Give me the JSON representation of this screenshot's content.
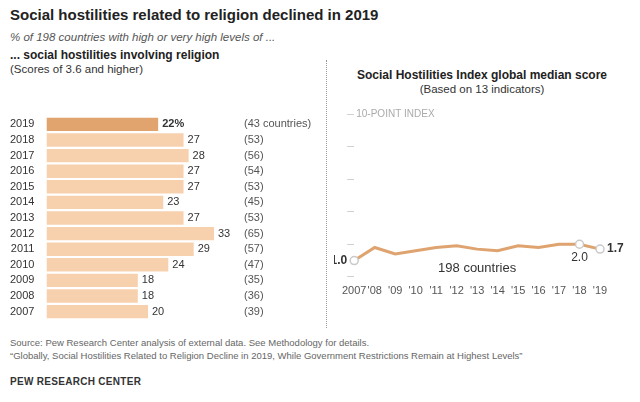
{
  "header": {
    "title": "Social hostilities related to religion declined in 2019",
    "subtitle": "% of 198 countries with high or very high levels of ..."
  },
  "chart_data": [
    {
      "type": "bar",
      "orientation": "horizontal",
      "title": "... social hostilities involving religion",
      "subtitle": "(Scores of 3.6 and higher)",
      "categories": [
        "2019",
        "2018",
        "2017",
        "2016",
        "2015",
        "2014",
        "2013",
        "2012",
        "2011",
        "2010",
        "2009",
        "2008",
        "2007"
      ],
      "values": [
        22,
        27,
        28,
        27,
        27,
        23,
        27,
        33,
        29,
        24,
        18,
        18,
        20
      ],
      "value_labels": [
        "22%",
        "27",
        "28",
        "27",
        "27",
        "23",
        "27",
        "33",
        "29",
        "24",
        "18",
        "18",
        "20"
      ],
      "data_labels": true,
      "colors": [
        "#e2a46e",
        "#f7d1ae",
        "#f7d1ae",
        "#f7d1ae",
        "#f7d1ae",
        "#f7d1ae",
        "#f7d1ae",
        "#f7d1ae",
        "#f7d1ae",
        "#f7d1ae",
        "#f7d1ae",
        "#f7d1ae",
        "#f7d1ae"
      ],
      "country_counts": {
        "values": [
          43,
          53,
          56,
          54,
          53,
          45,
          53,
          65,
          57,
          47,
          35,
          36,
          39
        ],
        "labels": [
          "(43 countries)",
          "(53)",
          "(56)",
          "(54)",
          "(53)",
          "(45)",
          "(53)",
          "(65)",
          "(57)",
          "(47)",
          "(35)",
          "(36)",
          "(39)"
        ]
      },
      "xlim": [
        0,
        33
      ],
      "tick_labels": "y",
      "grid": false
    },
    {
      "type": "line",
      "title": "Social Hostilities Index global median score",
      "subtitle": "(Based on 13 indicators)",
      "y_label": "10-POINT INDEX",
      "categories": [
        "2007",
        "'08",
        "'09",
        "'10",
        "'11",
        "'12",
        "'13",
        "'14",
        "'15",
        "'16",
        "'17",
        "'18",
        "'19"
      ],
      "values": [
        1.0,
        1.8,
        1.4,
        1.6,
        1.8,
        1.9,
        1.7,
        1.6,
        1.9,
        1.8,
        2.0,
        2.0,
        1.7
      ],
      "value_labels": [
        "1.0",
        null,
        null,
        null,
        null,
        null,
        null,
        null,
        null,
        null,
        null,
        "2.0",
        "1.7"
      ],
      "color": "#dea36f",
      "marker": "circle",
      "annotation": "198 countries",
      "ylim": [
        0,
        10
      ],
      "yticks": [
        0,
        2,
        4,
        6,
        8,
        10
      ],
      "tick_labels": "x",
      "grid": false
    }
  ],
  "footer": {
    "source": "Source: Pew Research Center analysis of external data. See Methodology for details.",
    "note": "“Globally, Social Hostilities Related to Religion Decline in 2019, While Government Restrictions Remain at Highest Levels”",
    "credit": "PEW RESEARCH CENTER"
  }
}
